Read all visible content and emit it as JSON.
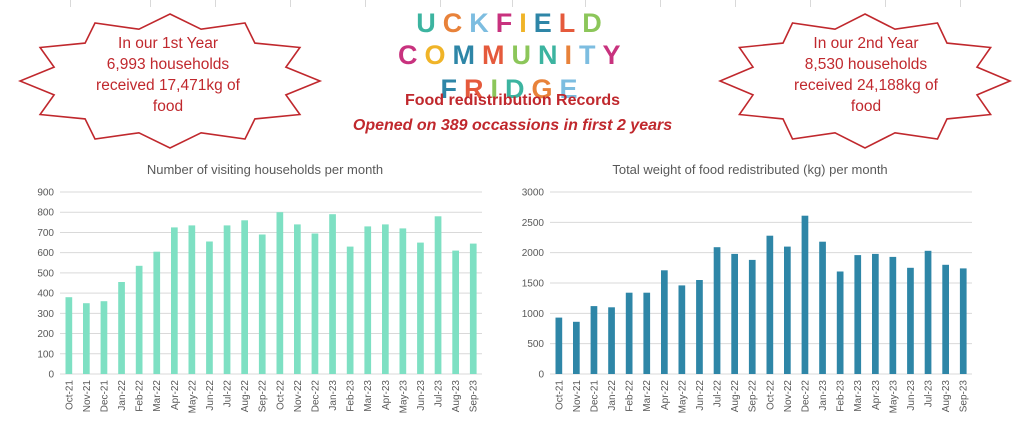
{
  "header": {
    "logo_line1": "UCKFIELD",
    "logo_line2": "COMMUNITY FRIDGE",
    "title": "Food redistribution Records",
    "subtitle": "Opened on 389 occassions in first 2 years"
  },
  "year1": {
    "line1": "In our 1st Year",
    "line2": "6,993 households",
    "line3": "received 17,471kg  of",
    "line4": "food"
  },
  "year2": {
    "line1": "In our 2nd Year",
    "line2": "8,530 households",
    "line3": "received 24,188kg  of",
    "line4": "food"
  },
  "colors": {
    "red": "#c0282d",
    "mint": "#7ee0c3",
    "teal": "#2e86a7",
    "grid": "#d9d9d9"
  },
  "chart_data": [
    {
      "type": "bar",
      "title": "Number of visiting households per month",
      "xlabel": "",
      "ylabel": "",
      "ylim": [
        0,
        900
      ],
      "yticks": [
        0,
        100,
        200,
        300,
        400,
        500,
        600,
        700,
        800,
        900
      ],
      "categories": [
        "Oct-21",
        "Nov-21",
        "Dec-21",
        "Jan-22",
        "Feb-22",
        "Mar-22",
        "Apr-22",
        "May-22",
        "Jun-22",
        "Jul-22",
        "Aug-22",
        "Sep-22",
        "Oct-22",
        "Nov-22",
        "Dec-22",
        "Jan-23",
        "Feb-23",
        "Mar-23",
        "Apr-23",
        "May-23",
        "Jun-23",
        "Jul-23",
        "Aug-23",
        "Sep-23"
      ],
      "values": [
        380,
        350,
        360,
        455,
        535,
        605,
        725,
        735,
        655,
        735,
        760,
        690,
        800,
        740,
        695,
        790,
        630,
        730,
        740,
        720,
        650,
        780,
        610,
        645
      ],
      "color": "#7ee0c3",
      "grid": true
    },
    {
      "type": "bar",
      "title": "Total weight of food redistributed (kg) per month",
      "xlabel": "",
      "ylabel": "",
      "ylim": [
        0,
        3000
      ],
      "yticks": [
        0,
        500,
        1000,
        1500,
        2000,
        2500,
        3000
      ],
      "categories": [
        "Oct-21",
        "Nov-21",
        "Dec-21",
        "Jan-22",
        "Feb-22",
        "Mar-22",
        "Apr-22",
        "May-22",
        "Jun-22",
        "Jul-22",
        "Aug-22",
        "Sep-22",
        "Oct-22",
        "Nov-22",
        "Dec-22",
        "Jan-23",
        "Feb-23",
        "Mar-23",
        "Apr-23",
        "May-23",
        "Jun-23",
        "Jul-23",
        "Aug-23",
        "Sep-23"
      ],
      "values": [
        930,
        860,
        1120,
        1100,
        1340,
        1340,
        1710,
        1460,
        1550,
        2090,
        1980,
        1880,
        2280,
        2100,
        2610,
        2180,
        1690,
        1960,
        1980,
        1930,
        1750,
        2030,
        1800,
        1740
      ],
      "color": "#2e86a7",
      "grid": true
    }
  ]
}
